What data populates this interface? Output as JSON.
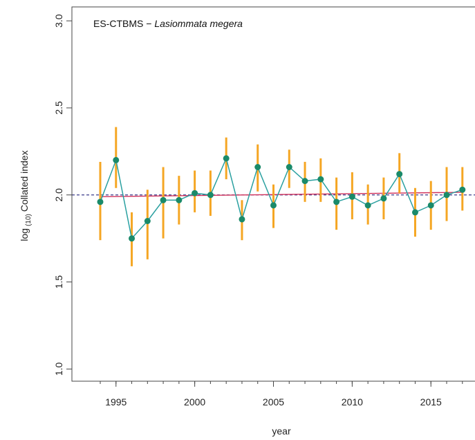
{
  "chart_data": {
    "type": "line",
    "title": "ES-CTBMS",
    "species": "Lasiommata megera",
    "xlabel": "year",
    "ylabel_main": "log",
    "ylabel_sub": "(10)",
    "ylabel_rest": "Collated index",
    "xlim": [
      1992.2,
      2017.8
    ],
    "ylim": [
      0.93,
      3.08
    ],
    "x_ticks": [
      1995,
      2000,
      2005,
      2010,
      2015
    ],
    "x_tick_labels": [
      "1995",
      "2000",
      "2005",
      "2010",
      "2015"
    ],
    "y_ticks": [
      1.0,
      1.5,
      2.0,
      2.5,
      3.0
    ],
    "y_tick_labels": [
      "1.0",
      "1.5",
      "2.0",
      "2.5",
      "3.0"
    ],
    "grid": false,
    "series": [
      {
        "x": [
          1994,
          1995,
          1996,
          1997,
          1998,
          1999,
          2000,
          2001,
          2002,
          2003,
          2004,
          2005,
          2006,
          2007,
          2008,
          2009,
          2010,
          2011,
          2012,
          2013,
          2014,
          2015,
          2016,
          2017
        ],
        "values": [
          1.96,
          2.2,
          1.75,
          1.85,
          1.97,
          1.97,
          2.01,
          2.0,
          2.21,
          1.86,
          2.16,
          1.94,
          2.16,
          2.08,
          2.09,
          1.96,
          1.99,
          1.94,
          1.98,
          2.12,
          1.9,
          1.94,
          2.0,
          2.03
        ],
        "lower": [
          1.74,
          2.04,
          1.59,
          1.63,
          1.75,
          1.83,
          1.9,
          1.88,
          2.09,
          1.74,
          2.02,
          1.81,
          2.04,
          1.96,
          1.96,
          1.8,
          1.86,
          1.83,
          1.86,
          2.01,
          1.76,
          1.8,
          1.85,
          1.91
        ],
        "upper": [
          2.19,
          2.39,
          1.9,
          2.03,
          2.16,
          2.11,
          2.14,
          2.14,
          2.33,
          1.97,
          2.29,
          2.06,
          2.26,
          2.19,
          2.21,
          2.1,
          2.13,
          2.06,
          2.1,
          2.24,
          2.04,
          2.08,
          2.16,
          2.16
        ]
      }
    ],
    "trend_line": {
      "x": [
        1994,
        2017
      ],
      "y": [
        1.99,
        2.015
      ]
    },
    "reference_line": {
      "y": 2.0
    },
    "colors": {
      "series_line": "#2aa0a0",
      "series_point": "#1a8a6a",
      "error_bar": "#f5a623",
      "trend_line": "#d0305a",
      "reference_line": "#3a3a8a",
      "axis": "#444444"
    }
  }
}
